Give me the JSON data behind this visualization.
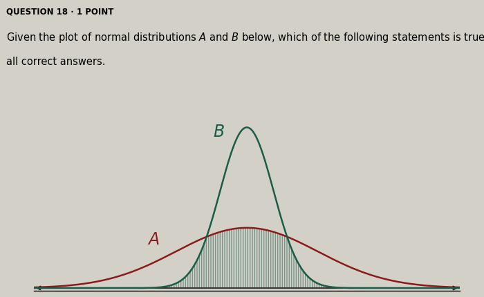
{
  "title": "QUESTION 18 · 1 POINT",
  "q_line1": "Given the plot of normal distributions $\\mathit{A}$ and $\\mathit{B}$ below, which of the following statements is true? Select",
  "q_line2": "all correct answers.",
  "curve_A_mean": 0.0,
  "curve_A_std": 2.0,
  "curve_B_mean": 0.0,
  "curve_B_std": 0.75,
  "color_A": "#8B1A1A",
  "color_B": "#1A5C48",
  "bg_color": "#D3D0C8",
  "label_A": "$\\mathit{A}$",
  "label_B": "$\\mathit{B}$",
  "xlim": [
    -6.0,
    6.0
  ],
  "ylim": [
    -0.01,
    0.58
  ],
  "fig_width": 7.0,
  "fig_height": 4.3,
  "title_fontsize": 8.5,
  "q_fontsize": 10.5,
  "label_fontsize": 17
}
